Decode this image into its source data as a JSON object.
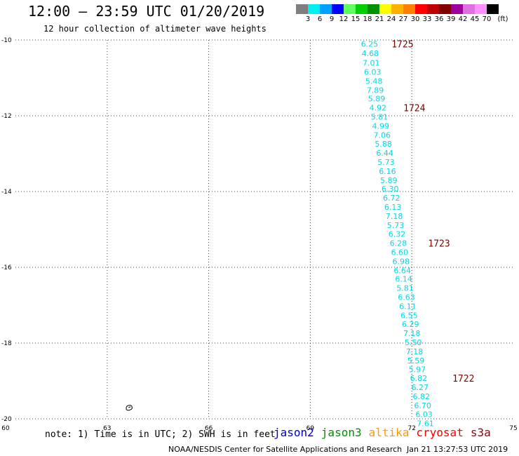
{
  "title": "12:00 – 23:59 UTC 01/20/2019",
  "subtitle": "12 hour collection of altimeter wave heights",
  "colorbar": {
    "colors": [
      "#7f7f7f",
      "#00f0f0",
      "#00a0ff",
      "#0000ff",
      "#60ff60",
      "#00d000",
      "#009000",
      "#ffff00",
      "#ffb000",
      "#ff8000",
      "#ff0000",
      "#c00000",
      "#800000",
      "#a000a0",
      "#e070e0",
      "#ff90ff",
      "#000000"
    ],
    "labels": [
      "3",
      "6",
      "9",
      "12",
      "15",
      "18",
      "21",
      "24",
      "27",
      "30",
      "33",
      "36",
      "39",
      "42",
      "45",
      "70",
      "(ft)"
    ]
  },
  "map": {
    "lon_ticks": [
      "60",
      "63",
      "66",
      "69",
      "72",
      "75"
    ],
    "lat_ticks": [
      "-10",
      "-12",
      "-14",
      "-16",
      "-18",
      "-20"
    ],
    "lon_range": [
      60,
      75
    ],
    "lat_range": [
      -20,
      -10
    ],
    "grid_lines": "dotted",
    "island_icon": "island-shape",
    "point_color": "#00d8e8",
    "time_color": "#800000",
    "track_points": [
      {
        "lon": 70.75,
        "lat": -10.1,
        "swh": "6.25"
      },
      {
        "lon": 70.77,
        "lat": -10.35,
        "swh": "4.68"
      },
      {
        "lon": 70.8,
        "lat": -10.6,
        "swh": "7.01"
      },
      {
        "lon": 70.84,
        "lat": -10.84,
        "swh": "6.03"
      },
      {
        "lon": 70.88,
        "lat": -11.08,
        "swh": "5.48"
      },
      {
        "lon": 70.92,
        "lat": -11.32,
        "swh": "7.89"
      },
      {
        "lon": 70.96,
        "lat": -11.55,
        "swh": "5.89"
      },
      {
        "lon": 71.0,
        "lat": -11.79,
        "swh": "4.92"
      },
      {
        "lon": 71.04,
        "lat": -12.03,
        "swh": "5.81"
      },
      {
        "lon": 71.08,
        "lat": -12.27,
        "swh": "4.99"
      },
      {
        "lon": 71.12,
        "lat": -12.51,
        "swh": "7.06"
      },
      {
        "lon": 71.16,
        "lat": -12.74,
        "swh": "5.88"
      },
      {
        "lon": 71.2,
        "lat": -12.98,
        "swh": "6.44"
      },
      {
        "lon": 71.24,
        "lat": -13.22,
        "swh": "5.73"
      },
      {
        "lon": 71.28,
        "lat": -13.46,
        "swh": "6.16"
      },
      {
        "lon": 71.32,
        "lat": -13.7,
        "swh": "5.89"
      },
      {
        "lon": 71.36,
        "lat": -13.93,
        "swh": "6.30"
      },
      {
        "lon": 71.4,
        "lat": -14.17,
        "swh": "6.72"
      },
      {
        "lon": 71.44,
        "lat": -14.41,
        "swh": "6.13"
      },
      {
        "lon": 71.48,
        "lat": -14.65,
        "swh": "7.18"
      },
      {
        "lon": 71.52,
        "lat": -14.89,
        "swh": "5.73"
      },
      {
        "lon": 71.56,
        "lat": -15.12,
        "swh": "6.32"
      },
      {
        "lon": 71.6,
        "lat": -15.36,
        "swh": "6.28"
      },
      {
        "lon": 71.64,
        "lat": -15.6,
        "swh": "6.60"
      },
      {
        "lon": 71.68,
        "lat": -15.84,
        "swh": "6.98"
      },
      {
        "lon": 71.72,
        "lat": -16.08,
        "swh": "6.64"
      },
      {
        "lon": 71.76,
        "lat": -16.31,
        "swh": "6.14"
      },
      {
        "lon": 71.8,
        "lat": -16.55,
        "swh": "5.81"
      },
      {
        "lon": 71.84,
        "lat": -16.79,
        "swh": "6.63"
      },
      {
        "lon": 71.88,
        "lat": -17.03,
        "swh": "6.11"
      },
      {
        "lon": 71.92,
        "lat": -17.27,
        "swh": "6.55"
      },
      {
        "lon": 71.96,
        "lat": -17.5,
        "swh": "6.29"
      },
      {
        "lon": 72.0,
        "lat": -17.74,
        "swh": "7.18"
      },
      {
        "lon": 72.04,
        "lat": -17.98,
        "swh": "5.50"
      },
      {
        "lon": 72.08,
        "lat": -18.22,
        "swh": "7.18"
      },
      {
        "lon": 72.12,
        "lat": -18.46,
        "swh": "5.59"
      },
      {
        "lon": 72.16,
        "lat": -18.69,
        "swh": "5.97"
      },
      {
        "lon": 72.2,
        "lat": -18.93,
        "swh": "6.82"
      },
      {
        "lon": 72.24,
        "lat": -19.17,
        "swh": "6.27"
      },
      {
        "lon": 72.28,
        "lat": -19.41,
        "swh": "6.82"
      },
      {
        "lon": 72.32,
        "lat": -19.65,
        "swh": "6.70"
      },
      {
        "lon": 72.36,
        "lat": -19.88,
        "swh": "6.03"
      },
      {
        "lon": 72.4,
        "lat": -20.12,
        "swh": "7.61"
      }
    ],
    "time_labels": [
      {
        "lon": 71.4,
        "lat": -10.1,
        "text": "1725"
      },
      {
        "lon": 71.75,
        "lat": -11.79,
        "text": "1724"
      },
      {
        "lon": 72.48,
        "lat": -15.36,
        "text": "1723"
      },
      {
        "lon": 73.2,
        "lat": -18.93,
        "text": "1722"
      }
    ]
  },
  "note": "note: 1) Time is in UTC; 2) SWH is in feet",
  "legend": [
    {
      "name": "jason2",
      "color": "#0000cc"
    },
    {
      "name": "jason3",
      "color": "#009000"
    },
    {
      "name": "altika",
      "color": "#ff9900"
    },
    {
      "name": "cryosat",
      "color": "#ff0000"
    },
    {
      "name": "s3a",
      "color": "#990000"
    }
  ],
  "credit": "NOAA/NESDIS Center for Satellite Applications and Research",
  "timestamp": "Jan 21 13:27:53 UTC 2019"
}
